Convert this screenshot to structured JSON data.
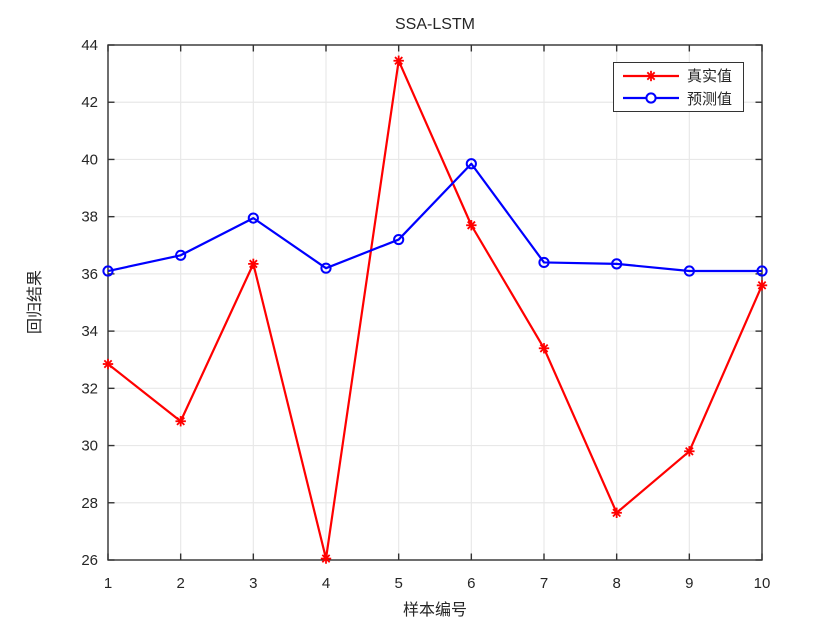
{
  "chart_data": {
    "type": "line",
    "title": "SSA-LSTM",
    "xlabel": "样本编号",
    "ylabel": "回归结果",
    "x": [
      1,
      2,
      3,
      4,
      5,
      6,
      7,
      8,
      9,
      10
    ],
    "series": [
      {
        "name": "真实值",
        "color": "#FF0000",
        "marker": "asterisk",
        "values": [
          32.85,
          30.85,
          36.35,
          26.05,
          43.45,
          37.7,
          33.4,
          27.65,
          29.8,
          35.6
        ]
      },
      {
        "name": "预测值",
        "color": "#0000FF",
        "marker": "circle",
        "values": [
          36.1,
          36.65,
          37.95,
          36.2,
          37.2,
          39.85,
          36.4,
          36.35,
          36.1,
          36.1
        ]
      }
    ],
    "xlim": [
      1,
      10
    ],
    "ylim": [
      26,
      44
    ],
    "xticks": [
      1,
      2,
      3,
      4,
      5,
      6,
      7,
      8,
      9,
      10
    ],
    "yticks": [
      26,
      28,
      30,
      32,
      34,
      36,
      38,
      40,
      42,
      44
    ],
    "grid": true,
    "legend_position": "top-right",
    "axis_color": "#333333",
    "grid_color": "#E8E8E8",
    "tick_label_color": "#262626",
    "background_color": "#FFFFFF"
  }
}
